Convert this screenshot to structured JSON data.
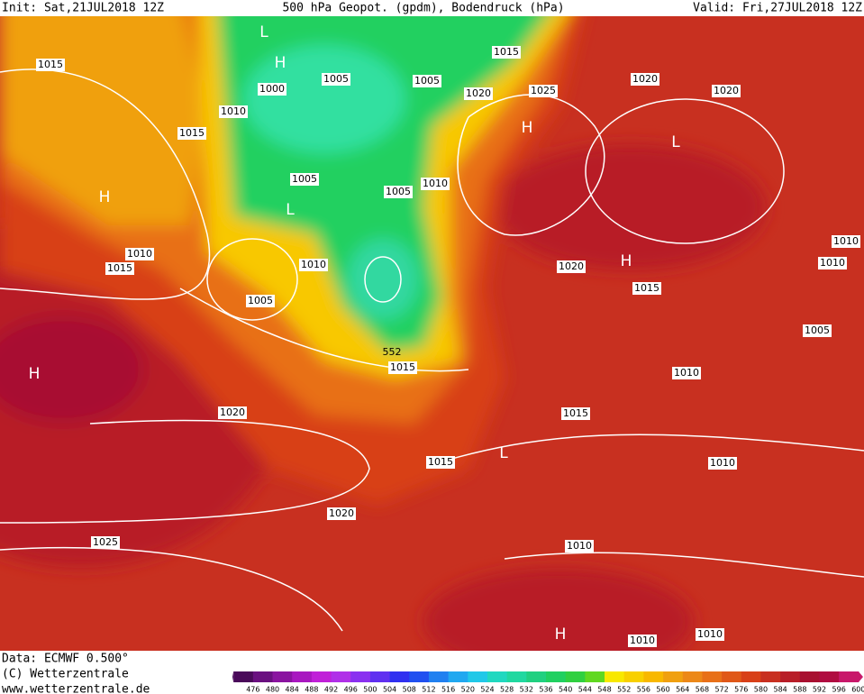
{
  "header": {
    "init": "Init: Sat,21JUL2018 12Z",
    "title": "500 hPa Geopot. (gpdm), Bodendruck (hPa)",
    "valid": "Valid: Fri,27JUL2018 12Z"
  },
  "isobar_labels": [
    "1015",
    "1000",
    "1005",
    "1005",
    "1015",
    "1020",
    "1025",
    "1020",
    "1020",
    "1010",
    "1015",
    "1005",
    "1005",
    "1010",
    "1010",
    "1015",
    "1010",
    "1005",
    "1020",
    "1015",
    "1010",
    "1010",
    "1005",
    "1015",
    "1010",
    "1015",
    "1020",
    "1015",
    "1010",
    "1020",
    "1025",
    "1010",
    "1010",
    "1010"
  ],
  "contour_label": "552",
  "centers": [
    "L",
    "H",
    "H",
    "L",
    "H",
    "L",
    "H",
    "H",
    "L",
    "H"
  ],
  "footer": {
    "data": "Data: ECMWF   0.500°",
    "copyright": "(C) Wetterzentrale",
    "url": "www.wetterzentrale.de"
  },
  "scale": {
    "labels": [
      476,
      480,
      484,
      488,
      492,
      496,
      500,
      504,
      508,
      512,
      516,
      520,
      524,
      528,
      532,
      536,
      540,
      544,
      548,
      552,
      556,
      560,
      564,
      568,
      572,
      576,
      580,
      584,
      588,
      592,
      596,
      600
    ],
    "colors": [
      "#4a0a5a",
      "#6a1080",
      "#8a14a0",
      "#a818c0",
      "#c020d8",
      "#b030e8",
      "#8a30f0",
      "#6030f0",
      "#3030f0",
      "#2050f0",
      "#2080f0",
      "#20a8f0",
      "#20c8e8",
      "#20d8c0",
      "#20d8a0",
      "#20d080",
      "#20d060",
      "#30d040",
      "#60d820",
      "#f8e800",
      "#f8d000",
      "#f8b800",
      "#f0a010",
      "#ec8818",
      "#e87018",
      "#e05818",
      "#d84018",
      "#c83020",
      "#b81e28",
      "#a81030",
      "#b00c40",
      "#c8186a"
    ]
  }
}
